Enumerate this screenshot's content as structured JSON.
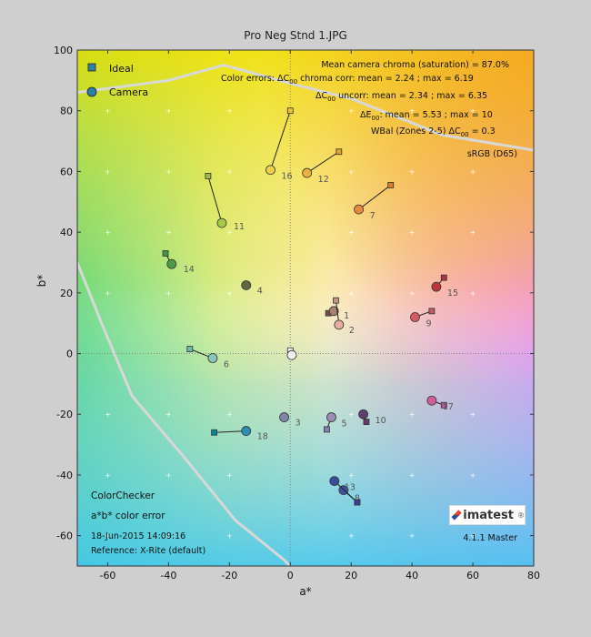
{
  "window_title": "Pro Neg Stnd 1.JPG",
  "chart_data": {
    "type": "scatter",
    "title": "Pro Neg Stnd 1.JPG",
    "xlabel": "a*",
    "ylabel": "b*",
    "xlim": [
      -70,
      80
    ],
    "ylim": [
      -70,
      100
    ],
    "xticks": [
      -60,
      -40,
      -20,
      0,
      20,
      40,
      60,
      80
    ],
    "yticks": [
      -60,
      -40,
      -20,
      0,
      20,
      40,
      60,
      80,
      100
    ],
    "grid": true,
    "legend": {
      "position": "top-left",
      "entries": [
        {
          "label": "Ideal",
          "marker": "square"
        },
        {
          "label": "Camera",
          "marker": "circle"
        }
      ]
    },
    "annotations": {
      "line1": "Mean camera chroma (saturation) = 87.0%",
      "line2_pre": "Color errors:  ΔC",
      "line2_sub": "00",
      "line2_post": " chroma corr: mean = 2.24 ; max = 6.19",
      "line3_pre": "ΔC",
      "line3_sub": "00",
      "line3_post": " uncorr: mean = 2.34 ; max = 6.35",
      "line4_pre": "ΔE",
      "line4_sub": "00",
      "line4_post": ": mean = 5.53 ; max = 10",
      "line5_pre": "WBal (Zones 2-5)  ΔC",
      "line5_sub": "00",
      "line5_post": " = 0.3",
      "line6": "sRGB (D65)"
    },
    "info": {
      "line1": "ColorChecker",
      "line2": "a*b* color error",
      "line3": "18-Jun-2015 14:09:16",
      "line4": "Reference: X-Rite (default)",
      "version": "4.1.1 Master"
    },
    "logo_text": "imatest",
    "gamut_boundary": [
      [
        -70,
        30
      ],
      [
        -62,
        10
      ],
      [
        -52,
        -14
      ],
      [
        -35,
        -34
      ],
      [
        -18,
        -55
      ],
      [
        -2,
        -68
      ],
      [
        18,
        -90
      ]
    ],
    "gamut_boundary_top": [
      [
        -70,
        86
      ],
      [
        -40,
        90
      ],
      [
        -22,
        95
      ],
      [
        -18,
        94
      ],
      [
        0,
        89
      ],
      [
        20,
        84
      ],
      [
        50,
        72
      ],
      [
        80,
        67
      ]
    ],
    "patches": [
      {
        "id": "1",
        "ideal": [
          12.5,
          13.3
        ],
        "camera": [
          14.3,
          14.0
        ],
        "color": "#a9826f",
        "ideal_color": "#735244"
      },
      {
        "id": "2",
        "ideal": [
          15.0,
          17.5
        ],
        "camera": [
          16.0,
          9.5
        ],
        "color": "#e3b0a0",
        "ideal_color": "#c29682"
      },
      {
        "id": "3",
        "ideal": [
          -2.0,
          -21.0
        ],
        "camera": [
          -2.0,
          -21.0
        ],
        "color": "#7d87a3",
        "ideal_color": "#627a9d"
      },
      {
        "id": "4",
        "ideal": [
          -14.5,
          22.5
        ],
        "camera": [
          -14.5,
          22.5
        ],
        "color": "#5f6b3e",
        "ideal_color": "#576c43"
      },
      {
        "id": "5",
        "ideal": [
          12.0,
          -25.0
        ],
        "camera": [
          13.5,
          -21.0
        ],
        "color": "#9a8eb4",
        "ideal_color": "#8580b1"
      },
      {
        "id": "6",
        "ideal": [
          -33.0,
          1.5
        ],
        "camera": [
          -25.5,
          -1.5
        ],
        "color": "#8bc5bb",
        "ideal_color": "#67bdaa"
      },
      {
        "id": "7",
        "ideal": [
          33.0,
          55.5
        ],
        "camera": [
          22.5,
          47.5
        ],
        "color": "#e68a3c",
        "ideal_color": "#d67e2c"
      },
      {
        "id": "8",
        "ideal": [
          22.0,
          -49.0
        ],
        "camera": [
          17.5,
          -45.0
        ],
        "color": "#3c55a2",
        "ideal_color": "#505ba6"
      },
      {
        "id": "9",
        "ideal": [
          46.5,
          14.0
        ],
        "camera": [
          41.0,
          12.0
        ],
        "color": "#d65a64",
        "ideal_color": "#c15a63"
      },
      {
        "id": "10",
        "ideal": [
          25.0,
          -22.5
        ],
        "camera": [
          24.0,
          -20.0
        ],
        "color": "#5e3f6b",
        "ideal_color": "#5e3c6c"
      },
      {
        "id": "11",
        "ideal": [
          -27.0,
          58.5
        ],
        "camera": [
          -22.5,
          43.0
        ],
        "color": "#a8c84a",
        "ideal_color": "#9dbc40"
      },
      {
        "id": "12",
        "ideal": [
          16.0,
          66.5
        ],
        "camera": [
          5.5,
          59.5
        ],
        "color": "#eab040",
        "ideal_color": "#e0a32e"
      },
      {
        "id": "13",
        "ideal": [
          22.0,
          -49.0
        ],
        "camera": [
          14.5,
          -42.0
        ],
        "color": "#3a4c9c",
        "ideal_color": "#383d96"
      },
      {
        "id": "14",
        "ideal": [
          -41.0,
          33.0
        ],
        "camera": [
          -39.0,
          29.5
        ],
        "color": "#4e9a47",
        "ideal_color": "#469449"
      },
      {
        "id": "15",
        "ideal": [
          50.5,
          25.0
        ],
        "camera": [
          48.0,
          22.0
        ],
        "color": "#c0353b",
        "ideal_color": "#af363c"
      },
      {
        "id": "16",
        "ideal": [
          0.0,
          80.0
        ],
        "camera": [
          -6.5,
          60.5
        ],
        "color": "#f0d04a",
        "ideal_color": "#e7c71f"
      },
      {
        "id": "17",
        "ideal": [
          50.5,
          -17.0
        ],
        "camera": [
          46.5,
          -15.5
        ],
        "color": "#d45e9c",
        "ideal_color": "#bb5695"
      },
      {
        "id": "18",
        "ideal": [
          -25.0,
          -26.0
        ],
        "camera": [
          -14.5,
          -25.5
        ],
        "color": "#2d8fb0",
        "ideal_color": "#0885a1"
      },
      {
        "id": "N",
        "ideal": [
          0.0,
          1.0
        ],
        "camera": [
          0.5,
          -0.5
        ],
        "color": "#f2f2f2",
        "ideal_color": "#f3f3f2"
      }
    ],
    "patch_label_offsets": {
      "1": [
        3,
        -4
      ],
      "2": [
        3,
        -5
      ],
      "3": [
        4,
        -5
      ],
      "4": [
        4,
        -5
      ],
      "5": [
        3,
        -6
      ],
      "6": [
        4,
        -6
      ],
      "7": [
        4,
        -6
      ],
      "8": [
        4,
        -8
      ],
      "9": [
        4,
        -6
      ],
      "10": [
        5,
        -6
      ],
      "11": [
        5,
        -3
      ],
      "12": [
        4,
        -6
      ],
      "13": [
        3,
        -6
      ],
      "14": [
        5,
        -5
      ],
      "15": [
        4,
        -6
      ],
      "16": [
        4,
        -6
      ],
      "17": [
        4,
        -6
      ],
      "18": [
        4,
        -5
      ]
    }
  }
}
